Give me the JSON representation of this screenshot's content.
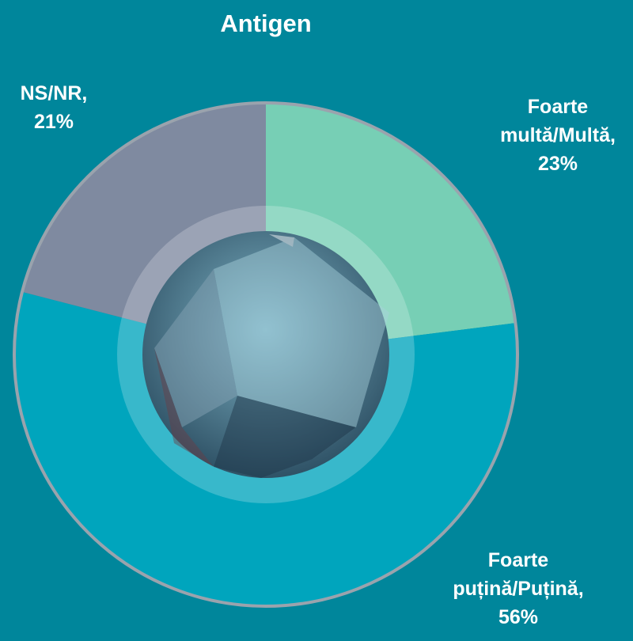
{
  "chart_data": {
    "type": "pie",
    "title": "Antigen",
    "categories": [
      "Foarte multă/Multă,",
      "Foarte puțină/Puțină,",
      "NS/NR,"
    ],
    "values": [
      23,
      56,
      21
    ],
    "value_labels": [
      "23%",
      "56%",
      "21%"
    ],
    "colors": [
      "#77cfb5",
      "#00a5bd",
      "#7f8aa0"
    ]
  }
}
